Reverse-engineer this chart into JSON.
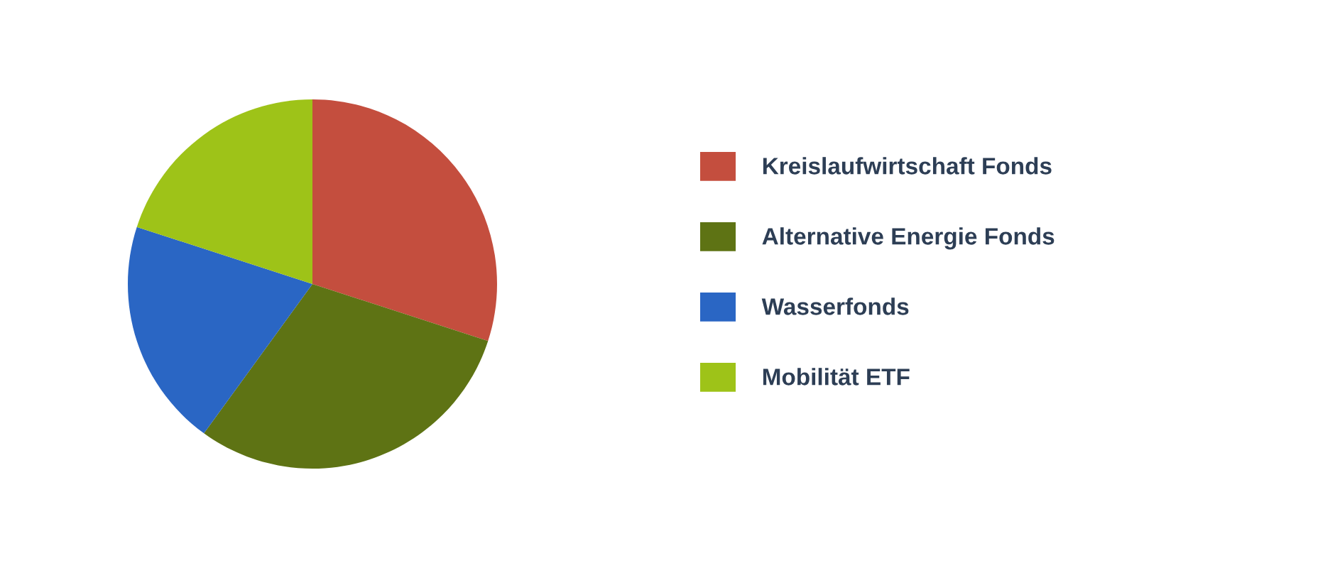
{
  "chart_data": {
    "type": "pie",
    "categories": [
      "Kreislaufwirtschaft Fonds",
      "Alternative Energie Fonds",
      "Wasserfonds",
      "Mobilität ETF"
    ],
    "values": [
      30,
      30,
      20,
      20
    ],
    "colors": [
      "#c44e3e",
      "#5e7314",
      "#2a66c4",
      "#9ec318"
    ],
    "legend": "right"
  }
}
